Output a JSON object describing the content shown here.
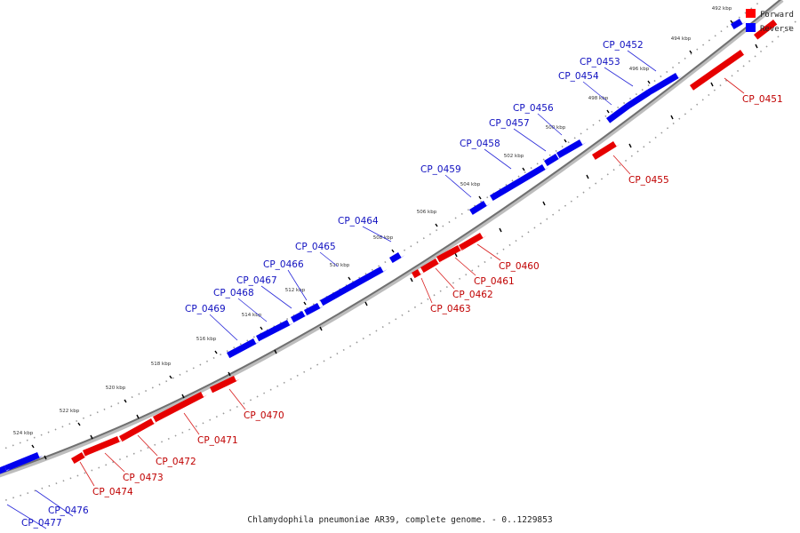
{
  "legend": [
    {
      "label": "Forward",
      "color": "#ff0000"
    },
    {
      "label": "Reverse",
      "color": "#0000ff"
    }
  ],
  "caption": "Chlamydophila pneumoniae AR39, complete genome. - 0..1229853",
  "ticks": [
    "492 kbp",
    "494 kbp",
    "496 kbp",
    "498 kbp",
    "500 kbp",
    "502 kbp",
    "504 kbp",
    "506 kbp",
    "508 kbp",
    "510 kbp",
    "512 kbp",
    "514 kbp",
    "516 kbp",
    "518 kbp",
    "520 kbp",
    "522 kbp",
    "524 kbp"
  ],
  "reverse_genes": [
    "CP_0452",
    "CP_0453",
    "CP_0454",
    "CP_0456",
    "CP_0457",
    "CP_0458",
    "CP_0459",
    "CP_0464",
    "CP_0465",
    "CP_0466",
    "CP_0467",
    "CP_0468",
    "CP_0469",
    "CP_0476",
    "CP_0477"
  ],
  "forward_genes": [
    "CP_0451",
    "CP_0455",
    "CP_0460",
    "CP_0461",
    "CP_0462",
    "CP_0463",
    "CP_0470",
    "CP_0471",
    "CP_0472",
    "CP_0473",
    "CP_0474"
  ]
}
